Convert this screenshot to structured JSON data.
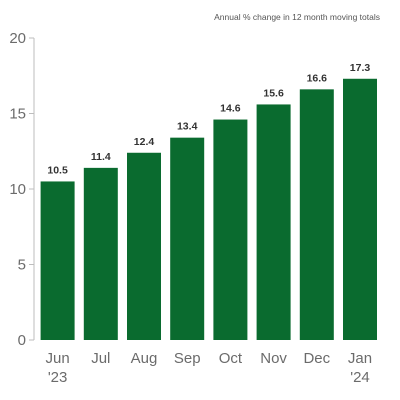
{
  "chart_data": {
    "type": "bar",
    "subtitle": "Annual % change in 12 month moving totals",
    "categories": [
      [
        "Jun",
        "'23"
      ],
      [
        "Jul"
      ],
      [
        "Aug"
      ],
      [
        "Sep"
      ],
      [
        "Oct"
      ],
      [
        "Nov"
      ],
      [
        "Dec"
      ],
      [
        "Jan",
        "'24"
      ]
    ],
    "values": [
      10.5,
      11.4,
      12.4,
      13.4,
      14.6,
      15.6,
      16.6,
      17.3
    ],
    "data_labels": [
      "10.5",
      "11.4",
      "12.4",
      "13.4",
      "14.6",
      "15.6",
      "16.6",
      "17.3"
    ],
    "yticks": [
      "0",
      "5",
      "10",
      "15",
      "20"
    ],
    "ylim": [
      0,
      20
    ],
    "grid": false,
    "bar_color": "#0a6b2f"
  }
}
